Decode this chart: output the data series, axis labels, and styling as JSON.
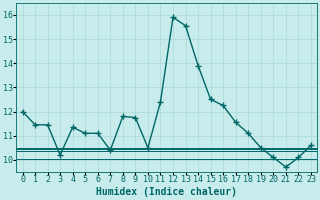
{
  "xlabel": "Humidex (Indice chaleur)",
  "x": [
    0,
    1,
    2,
    3,
    4,
    5,
    6,
    7,
    8,
    9,
    10,
    11,
    12,
    13,
    14,
    15,
    16,
    17,
    18,
    19,
    20,
    21,
    22,
    23
  ],
  "y_main": [
    12.0,
    11.45,
    11.45,
    10.2,
    11.35,
    11.1,
    11.1,
    10.4,
    11.8,
    11.75,
    10.5,
    12.4,
    15.9,
    15.55,
    13.9,
    12.5,
    12.25,
    11.55,
    11.1,
    10.5,
    10.1,
    9.7,
    10.1,
    10.6
  ],
  "y_flat1": 10.05,
  "y_flat2": 10.35,
  "y_flat3": 10.5,
  "y_flat4": 10.45,
  "line_color": "#006666",
  "bg_color": "#c8ecec",
  "grid_color": "#a8d8d8",
  "ylim": [
    9.5,
    16.5
  ],
  "yticks": [
    10,
    11,
    12,
    13,
    14,
    15,
    16
  ],
  "xlim": [
    -0.5,
    23.5
  ],
  "marker": "+",
  "marker_size": 4,
  "linewidth": 1.0,
  "xlabel_fontsize": 7,
  "tick_fontsize": 6
}
